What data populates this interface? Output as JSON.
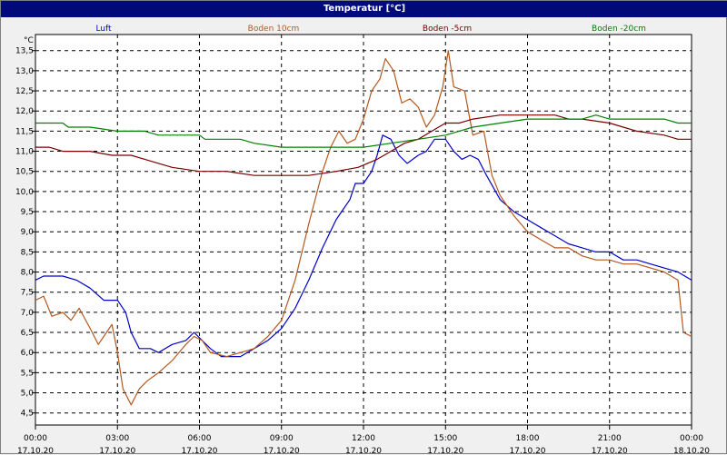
{
  "window": {
    "title": "Temperatur [°C]"
  },
  "colors": {
    "title_bar": "#000a78",
    "background": "#f0f0f0",
    "plot_bg": "#ffffff",
    "grid": "#000000"
  },
  "chart_data": {
    "type": "line",
    "ylabel": "°C",
    "ylim": [
      4.2,
      13.9
    ],
    "xlim": [
      0,
      24
    ],
    "y_ticks": [
      "4,5",
      "5,0",
      "5,5",
      "6,0",
      "6,5",
      "7,0",
      "7,5",
      "8,0",
      "8,5",
      "9,0",
      "9,5",
      "10,0",
      "10,5",
      "11,0",
      "11,5",
      "12,0",
      "12,5",
      "13,0",
      "13,5"
    ],
    "x_ticks": [
      {
        "time": "00:00",
        "date": "17.10.20"
      },
      {
        "time": "03:00",
        "date": "17.10.20"
      },
      {
        "time": "06:00",
        "date": "17.10.20"
      },
      {
        "time": "09:00",
        "date": "17.10.20"
      },
      {
        "time": "12:00",
        "date": "17.10.20"
      },
      {
        "time": "15:00",
        "date": "17.10.20"
      },
      {
        "time": "18:00",
        "date": "17.10.20"
      },
      {
        "time": "21:00",
        "date": "17.10.20"
      },
      {
        "time": "00:00",
        "date": "18.10.20"
      }
    ],
    "grid": true,
    "legend_position": "top",
    "series": [
      {
        "name": "Luft",
        "color": "#0000cc",
        "points": [
          [
            0,
            7.8
          ],
          [
            0.3,
            7.9
          ],
          [
            1,
            7.9
          ],
          [
            1.5,
            7.8
          ],
          [
            2,
            7.6
          ],
          [
            2.5,
            7.3
          ],
          [
            3,
            7.3
          ],
          [
            3.3,
            7.0
          ],
          [
            3.5,
            6.5
          ],
          [
            3.8,
            6.1
          ],
          [
            4.2,
            6.1
          ],
          [
            4.5,
            6.0
          ],
          [
            5,
            6.2
          ],
          [
            5.5,
            6.3
          ],
          [
            5.8,
            6.5
          ],
          [
            6.1,
            6.3
          ],
          [
            6.4,
            6.1
          ],
          [
            6.8,
            5.9
          ],
          [
            7.5,
            5.9
          ],
          [
            8,
            6.1
          ],
          [
            8.5,
            6.3
          ],
          [
            9,
            6.6
          ],
          [
            9.5,
            7.1
          ],
          [
            10,
            7.8
          ],
          [
            10.5,
            8.6
          ],
          [
            11,
            9.3
          ],
          [
            11.5,
            9.8
          ],
          [
            11.7,
            10.2
          ],
          [
            12,
            10.2
          ],
          [
            12.3,
            10.5
          ],
          [
            12.5,
            10.9
          ],
          [
            12.7,
            11.4
          ],
          [
            13,
            11.3
          ],
          [
            13.3,
            10.9
          ],
          [
            13.6,
            10.7
          ],
          [
            14,
            10.9
          ],
          [
            14.3,
            11.0
          ],
          [
            14.6,
            11.3
          ],
          [
            15,
            11.3
          ],
          [
            15.3,
            11.0
          ],
          [
            15.6,
            10.8
          ],
          [
            15.9,
            10.9
          ],
          [
            16.2,
            10.8
          ],
          [
            16.5,
            10.4
          ],
          [
            17,
            9.8
          ],
          [
            17.5,
            9.5
          ],
          [
            18,
            9.3
          ],
          [
            18.5,
            9.1
          ],
          [
            19,
            8.9
          ],
          [
            19.5,
            8.7
          ],
          [
            20,
            8.6
          ],
          [
            20.5,
            8.5
          ],
          [
            21,
            8.5
          ],
          [
            21.5,
            8.3
          ],
          [
            22,
            8.3
          ],
          [
            22.5,
            8.2
          ],
          [
            23,
            8.1
          ],
          [
            23.5,
            8.0
          ],
          [
            24,
            7.8
          ]
        ]
      },
      {
        "name": "Boden 10cm",
        "color": "#b4581e",
        "points": [
          [
            0,
            7.3
          ],
          [
            0.3,
            7.4
          ],
          [
            0.6,
            6.9
          ],
          [
            1,
            7.0
          ],
          [
            1.3,
            6.8
          ],
          [
            1.6,
            7.1
          ],
          [
            2,
            6.6
          ],
          [
            2.3,
            6.2
          ],
          [
            2.6,
            6.5
          ],
          [
            2.8,
            6.7
          ],
          [
            3.0,
            6.0
          ],
          [
            3.2,
            5.1
          ],
          [
            3.5,
            4.7
          ],
          [
            3.8,
            5.1
          ],
          [
            4.1,
            5.3
          ],
          [
            4.5,
            5.5
          ],
          [
            5,
            5.8
          ],
          [
            5.5,
            6.2
          ],
          [
            5.8,
            6.4
          ],
          [
            6.1,
            6.3
          ],
          [
            6.4,
            6.0
          ],
          [
            7,
            5.9
          ],
          [
            7.5,
            6.0
          ],
          [
            8,
            6.1
          ],
          [
            8.5,
            6.4
          ],
          [
            9,
            6.8
          ],
          [
            9.5,
            7.8
          ],
          [
            10,
            9.2
          ],
          [
            10.5,
            10.5
          ],
          [
            10.8,
            11.1
          ],
          [
            11.1,
            11.5
          ],
          [
            11.4,
            11.2
          ],
          [
            11.7,
            11.3
          ],
          [
            12,
            11.8
          ],
          [
            12.3,
            12.5
          ],
          [
            12.6,
            12.8
          ],
          [
            12.8,
            13.3
          ],
          [
            13.1,
            13.0
          ],
          [
            13.4,
            12.2
          ],
          [
            13.7,
            12.3
          ],
          [
            14,
            12.1
          ],
          [
            14.3,
            11.6
          ],
          [
            14.6,
            11.9
          ],
          [
            14.9,
            12.6
          ],
          [
            15.1,
            13.5
          ],
          [
            15.3,
            12.6
          ],
          [
            15.7,
            12.5
          ],
          [
            16,
            11.4
          ],
          [
            16.4,
            11.5
          ],
          [
            16.7,
            10.4
          ],
          [
            17,
            9.9
          ],
          [
            17.5,
            9.4
          ],
          [
            18,
            9.0
          ],
          [
            18.5,
            8.8
          ],
          [
            19,
            8.6
          ],
          [
            19.5,
            8.6
          ],
          [
            20,
            8.4
          ],
          [
            20.5,
            8.3
          ],
          [
            21,
            8.3
          ],
          [
            21.5,
            8.2
          ],
          [
            22,
            8.2
          ],
          [
            22.5,
            8.1
          ],
          [
            23,
            8.0
          ],
          [
            23.5,
            7.8
          ],
          [
            23.7,
            6.5
          ],
          [
            24,
            6.4
          ]
        ]
      },
      {
        "name": "Boden -5cm",
        "color": "#780000",
        "points": [
          [
            0,
            11.1
          ],
          [
            0.5,
            11.1
          ],
          [
            1,
            11.0
          ],
          [
            2,
            11.0
          ],
          [
            2.8,
            10.9
          ],
          [
            3.5,
            10.9
          ],
          [
            4,
            10.8
          ],
          [
            5,
            10.6
          ],
          [
            6,
            10.5
          ],
          [
            7,
            10.5
          ],
          [
            8,
            10.4
          ],
          [
            9,
            10.4
          ],
          [
            10,
            10.4
          ],
          [
            11,
            10.5
          ],
          [
            11.8,
            10.6
          ],
          [
            12.5,
            10.8
          ],
          [
            13,
            11.0
          ],
          [
            13.5,
            11.2
          ],
          [
            14,
            11.3
          ],
          [
            14.5,
            11.5
          ],
          [
            15,
            11.7
          ],
          [
            15.5,
            11.7
          ],
          [
            16,
            11.8
          ],
          [
            17,
            11.9
          ],
          [
            18,
            11.9
          ],
          [
            19,
            11.9
          ],
          [
            19.5,
            11.8
          ],
          [
            20,
            11.8
          ],
          [
            21,
            11.7
          ],
          [
            21.5,
            11.6
          ],
          [
            22,
            11.5
          ],
          [
            23,
            11.4
          ],
          [
            23.5,
            11.3
          ],
          [
            24,
            11.3
          ]
        ]
      },
      {
        "name": "Boden -20cm",
        "color": "#008000",
        "points": [
          [
            0,
            11.7
          ],
          [
            1,
            11.7
          ],
          [
            1.2,
            11.6
          ],
          [
            2,
            11.6
          ],
          [
            3,
            11.5
          ],
          [
            4,
            11.5
          ],
          [
            4.5,
            11.4
          ],
          [
            6,
            11.4
          ],
          [
            6.2,
            11.3
          ],
          [
            7.5,
            11.3
          ],
          [
            8,
            11.2
          ],
          [
            9,
            11.1
          ],
          [
            12,
            11.1
          ],
          [
            13,
            11.2
          ],
          [
            14,
            11.3
          ],
          [
            15,
            11.4
          ],
          [
            15.5,
            11.5
          ],
          [
            16,
            11.6
          ],
          [
            17,
            11.7
          ],
          [
            18,
            11.8
          ],
          [
            19,
            11.8
          ],
          [
            20,
            11.8
          ],
          [
            20.5,
            11.9
          ],
          [
            21,
            11.8
          ],
          [
            22,
            11.8
          ],
          [
            23,
            11.8
          ],
          [
            23.5,
            11.7
          ],
          [
            24,
            11.7
          ]
        ]
      }
    ]
  }
}
